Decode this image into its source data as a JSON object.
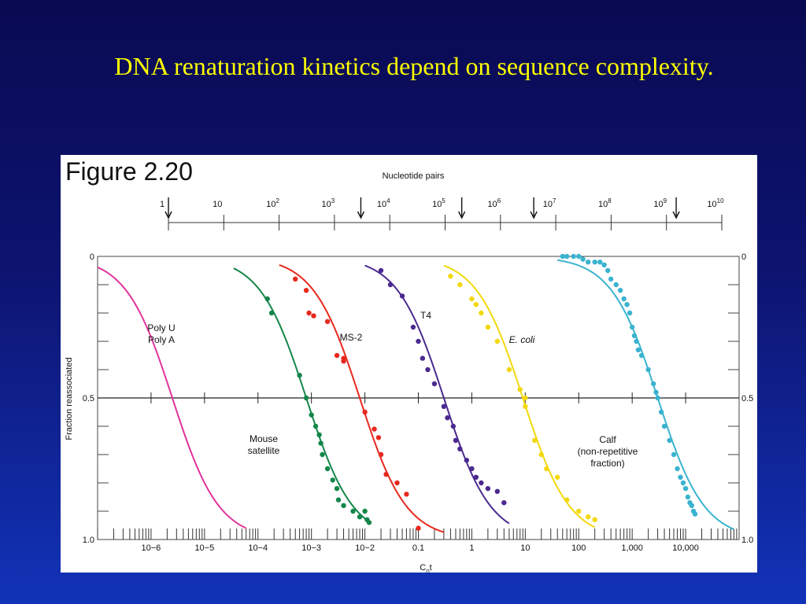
{
  "slide": {
    "title": "DNA renaturation kinetics depend on sequence complexity."
  },
  "figure": {
    "label": "Figure 2.20"
  },
  "chart_data": {
    "type": "scatter",
    "xlabel": "C0t",
    "ylabel": "Fraction reassociated",
    "x_scale": "log",
    "xlim": [
      1e-07,
      100000.0
    ],
    "ylim": [
      0,
      1.0
    ],
    "y_reversed": true,
    "x_tick_labels": [
      "10−6",
      "10−5",
      "10−4",
      "10−3",
      "10−2",
      "0.1",
      "1",
      "10",
      "100",
      "1,000",
      "10,000"
    ],
    "x_tick_values": [
      1e-06,
      1e-05,
      0.0001,
      0.001,
      0.01,
      0.1,
      1,
      10,
      100,
      1000,
      10000
    ],
    "y_tick_labels": [
      "0",
      "0.5",
      "1.0"
    ],
    "y_tick_values": [
      0,
      0.5,
      1.0
    ],
    "top_axis": {
      "label": "Nucleotide pairs",
      "tick_values": [
        1,
        10,
        100,
        1000,
        10000,
        100000,
        1000000,
        10000000,
        100000000,
        1000000000,
        10000000000
      ],
      "tick_labels": [
        {
          "base": "1",
          "exp": ""
        },
        {
          "base": "10",
          "exp": ""
        },
        {
          "base": "10",
          "exp": "2"
        },
        {
          "base": "10",
          "exp": "3"
        },
        {
          "base": "10",
          "exp": "4"
        },
        {
          "base": "10",
          "exp": "5"
        },
        {
          "base": "10",
          "exp": "6"
        },
        {
          "base": "10",
          "exp": "7"
        },
        {
          "base": "10",
          "exp": "8"
        },
        {
          "base": "10",
          "exp": "9"
        },
        {
          "base": "10",
          "exp": "10"
        }
      ],
      "arrows_at": [
        1,
        3000,
        200000,
        4000000,
        1500000000
      ]
    },
    "series": [
      {
        "name": "Poly U Poly A",
        "label_lines": [
          "Poly U",
          "Poly A"
        ],
        "color": "#e0349b",
        "curve_c0t_half": 2.5e-06,
        "curve_range": [
          1e-07,
          6e-05
        ],
        "points": []
      },
      {
        "name": "Mouse satellite",
        "label_lines": [
          "Mouse",
          "satellite"
        ],
        "color": "#14864a",
        "curve_c0t_half": 0.0008,
        "curve_range": [
          3.5e-05,
          0.012
        ],
        "points": [
          [
            0.00015,
            0.15
          ],
          [
            0.00018,
            0.2
          ],
          [
            0.0006,
            0.42
          ],
          [
            0.0008,
            0.5
          ],
          [
            0.001,
            0.56
          ],
          [
            0.0012,
            0.6
          ],
          [
            0.0014,
            0.63
          ],
          [
            0.0015,
            0.66
          ],
          [
            0.0016,
            0.7
          ],
          [
            0.002,
            0.75
          ],
          [
            0.0025,
            0.79
          ],
          [
            0.003,
            0.82
          ],
          [
            0.0032,
            0.86
          ],
          [
            0.004,
            0.88
          ],
          [
            0.006,
            0.9
          ],
          [
            0.008,
            0.92
          ],
          [
            0.01,
            0.9
          ],
          [
            0.011,
            0.93
          ],
          [
            0.012,
            0.94
          ]
        ]
      },
      {
        "name": "MS-2",
        "label_lines": [
          "MS-2"
        ],
        "color": "#e8281e",
        "curve_c0t_half": 0.008,
        "curve_range": [
          0.00025,
          0.3
        ],
        "points": [
          [
            0.0005,
            0.08
          ],
          [
            0.0008,
            0.12
          ],
          [
            0.0009,
            0.2
          ],
          [
            0.0011,
            0.21
          ],
          [
            0.002,
            0.23
          ],
          [
            0.003,
            0.35
          ],
          [
            0.004,
            0.36
          ],
          [
            0.004,
            0.37
          ],
          [
            0.01,
            0.55
          ],
          [
            0.015,
            0.61
          ],
          [
            0.018,
            0.64
          ],
          [
            0.02,
            0.7
          ],
          [
            0.025,
            0.77
          ],
          [
            0.04,
            0.8
          ],
          [
            0.06,
            0.84
          ],
          [
            0.1,
            0.96
          ]
        ]
      },
      {
        "name": "T4",
        "label_lines": [
          "T4"
        ],
        "color": "#4b2a8f",
        "curve_c0t_half": 0.3,
        "curve_range": [
          0.01,
          5
        ],
        "points": [
          [
            0.02,
            0.05
          ],
          [
            0.03,
            0.1
          ],
          [
            0.05,
            0.14
          ],
          [
            0.08,
            0.25
          ],
          [
            0.1,
            0.3
          ],
          [
            0.12,
            0.36
          ],
          [
            0.15,
            0.4
          ],
          [
            0.2,
            0.45
          ],
          [
            0.3,
            0.53
          ],
          [
            0.35,
            0.57
          ],
          [
            0.45,
            0.6
          ],
          [
            0.5,
            0.65
          ],
          [
            0.6,
            0.68
          ],
          [
            0.8,
            0.72
          ],
          [
            1.0,
            0.75
          ],
          [
            1.2,
            0.78
          ],
          [
            1.5,
            0.8
          ],
          [
            2.0,
            0.82
          ],
          [
            3.0,
            0.83
          ],
          [
            4.0,
            0.87
          ]
        ]
      },
      {
        "name": "E. coli",
        "label_lines": [
          "E. coli"
        ],
        "color": "#f2d80e",
        "curve_c0t_half": 9,
        "curve_range": [
          0.3,
          200
        ],
        "points": [
          [
            0.4,
            0.07
          ],
          [
            0.6,
            0.1
          ],
          [
            1.0,
            0.15
          ],
          [
            1.2,
            0.17
          ],
          [
            1.5,
            0.2
          ],
          [
            2.0,
            0.25
          ],
          [
            3.0,
            0.3
          ],
          [
            5.0,
            0.4
          ],
          [
            8.0,
            0.47
          ],
          [
            10,
            0.5
          ],
          [
            10,
            0.53
          ],
          [
            15,
            0.65
          ],
          [
            20,
            0.7
          ],
          [
            25,
            0.75
          ],
          [
            40,
            0.78
          ],
          [
            60,
            0.86
          ],
          [
            100,
            0.9
          ],
          [
            150,
            0.92
          ],
          [
            200,
            0.93
          ]
        ]
      },
      {
        "name": "Calf (non-repetitive fraction)",
        "label_lines": [
          "Calf",
          "(non-repetitive",
          "fraction)"
        ],
        "color": "#3ab3cf",
        "curve_c0t_half": 3000,
        "curve_range": [
          40,
          80000
        ],
        "points": [
          [
            50,
            0.0
          ],
          [
            60,
            0.0
          ],
          [
            80,
            0.0
          ],
          [
            100,
            0.0
          ],
          [
            120,
            0.01
          ],
          [
            150,
            0.02
          ],
          [
            200,
            0.02
          ],
          [
            250,
            0.02
          ],
          [
            300,
            0.03
          ],
          [
            350,
            0.05
          ],
          [
            400,
            0.08
          ],
          [
            500,
            0.1
          ],
          [
            600,
            0.12
          ],
          [
            700,
            0.15
          ],
          [
            800,
            0.17
          ],
          [
            900,
            0.2
          ],
          [
            1000,
            0.25
          ],
          [
            1100,
            0.28
          ],
          [
            1200,
            0.3
          ],
          [
            1300,
            0.33
          ],
          [
            1500,
            0.35
          ],
          [
            2000,
            0.4
          ],
          [
            2500,
            0.45
          ],
          [
            2800,
            0.48
          ],
          [
            3000,
            0.5
          ],
          [
            3500,
            0.55
          ],
          [
            4000,
            0.6
          ],
          [
            5000,
            0.65
          ],
          [
            6000,
            0.7
          ],
          [
            7000,
            0.75
          ],
          [
            8000,
            0.78
          ],
          [
            9000,
            0.8
          ],
          [
            10000,
            0.82
          ],
          [
            11000,
            0.85
          ],
          [
            12000,
            0.87
          ],
          [
            13000,
            0.88
          ],
          [
            14000,
            0.9
          ],
          [
            15000,
            0.91
          ]
        ]
      }
    ]
  }
}
